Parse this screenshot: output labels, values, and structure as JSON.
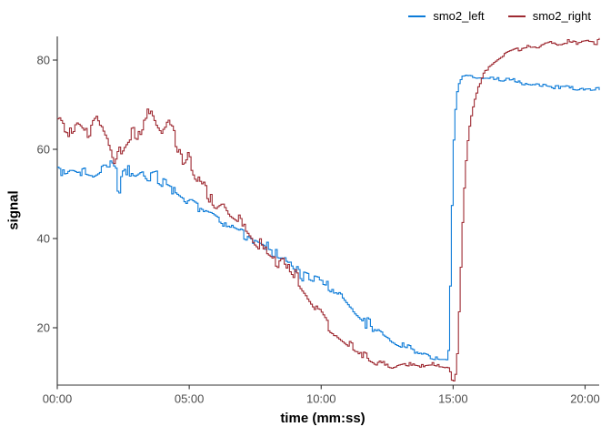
{
  "chart_data": {
    "type": "line",
    "title": "",
    "xlabel": "time (mm:ss)",
    "ylabel": "signal",
    "background_color": "#ffffff",
    "axis_color": "#333333",
    "tick_label_color": "#4d4d4d",
    "axis_title_color": "#000000",
    "grid": "off",
    "legend_position": "top-right",
    "x_axis": {
      "unit": "mm:ss",
      "min_seconds": 0,
      "max_seconds": 1200,
      "data_end_seconds": 1232,
      "ticks_seconds": [
        0,
        300,
        600,
        900,
        1200
      ],
      "tick_labels": [
        "00:00",
        "05:00",
        "10:00",
        "15:00",
        "20:00"
      ]
    },
    "y_axis": {
      "ticks": [
        20,
        40,
        60,
        80
      ],
      "tick_labels": [
        "20",
        "40",
        "60",
        "80"
      ],
      "panel_min": 7.4,
      "panel_max": 85.3
    },
    "series": [
      {
        "name": "smo2_left",
        "color": "#0c7bd8",
        "trend_points": [
          [
            0,
            55.3
          ],
          [
            15,
            54.2
          ],
          [
            30,
            55.0
          ],
          [
            45,
            54.2
          ],
          [
            60,
            54.8
          ],
          [
            75,
            54.3
          ],
          [
            90,
            55.2
          ],
          [
            105,
            56.3
          ],
          [
            118,
            56.9
          ],
          [
            132,
            55.2
          ],
          [
            138,
            48.5
          ],
          [
            144,
            54.0
          ],
          [
            160,
            55.4
          ],
          [
            175,
            54.2
          ],
          [
            190,
            55.2
          ],
          [
            205,
            53.4
          ],
          [
            224,
            54.0
          ],
          [
            240,
            52.2
          ],
          [
            260,
            51.2
          ],
          [
            280,
            49.6
          ],
          [
            300,
            48.4
          ],
          [
            327,
            46.6
          ],
          [
            350,
            45.6
          ],
          [
            370,
            44.2
          ],
          [
            390,
            42.6
          ],
          [
            410,
            41.6
          ],
          [
            430,
            40.6
          ],
          [
            455,
            38.9
          ],
          [
            480,
            37.6
          ],
          [
            505,
            36.9
          ],
          [
            530,
            35.6
          ],
          [
            555,
            31.6
          ],
          [
            585,
            30.4
          ],
          [
            615,
            29.6
          ],
          [
            645,
            27.4
          ],
          [
            675,
            23.6
          ],
          [
            700,
            21.2
          ],
          [
            718,
            19.9
          ],
          [
            740,
            18.4
          ],
          [
            760,
            17.1
          ],
          [
            786,
            15.9
          ],
          [
            810,
            14.9
          ],
          [
            830,
            13.9
          ],
          [
            850,
            13.3
          ],
          [
            870,
            12.9
          ],
          [
            885,
            12.9
          ],
          [
            888,
            15.0
          ],
          [
            891,
            25.0
          ],
          [
            894,
            38.0
          ],
          [
            897,
            52.0
          ],
          [
            900,
            62.0
          ],
          [
            904,
            69.0
          ],
          [
            908,
            73.0
          ],
          [
            913,
            75.2
          ],
          [
            920,
            76.2
          ],
          [
            935,
            76.4
          ],
          [
            955,
            76.0
          ],
          [
            975,
            76.2
          ],
          [
            1000,
            75.8
          ],
          [
            1025,
            75.6
          ],
          [
            1050,
            75.0
          ],
          [
            1075,
            74.6
          ],
          [
            1100,
            74.2
          ],
          [
            1125,
            73.8
          ],
          [
            1150,
            74.0
          ],
          [
            1175,
            73.6
          ],
          [
            1200,
            73.3
          ],
          [
            1232,
            73.6
          ]
        ],
        "noise_amplitude": [
          [
            0,
            1.0
          ],
          [
            130,
            1.3
          ],
          [
            300,
            1.2
          ],
          [
            560,
            1.5
          ],
          [
            700,
            1.4
          ],
          [
            820,
            0.7
          ],
          [
            880,
            0.25
          ],
          [
            890,
            0.05
          ],
          [
            915,
            0.25
          ],
          [
            940,
            0.5
          ],
          [
            1232,
            0.5
          ]
        ]
      },
      {
        "name": "smo2_right",
        "color": "#9e2a32",
        "trend_points": [
          [
            0,
            66.5
          ],
          [
            15,
            64.2
          ],
          [
            30,
            63.6
          ],
          [
            45,
            65.0
          ],
          [
            60,
            63.2
          ],
          [
            75,
            64.6
          ],
          [
            90,
            66.4
          ],
          [
            105,
            62.6
          ],
          [
            118,
            60.0
          ],
          [
            128,
            56.6
          ],
          [
            140,
            59.6
          ],
          [
            155,
            62.0
          ],
          [
            170,
            64.0
          ],
          [
            185,
            63.2
          ],
          [
            200,
            67.0
          ],
          [
            212,
            69.2
          ],
          [
            224,
            66.0
          ],
          [
            240,
            63.6
          ],
          [
            255,
            65.4
          ],
          [
            270,
            61.6
          ],
          [
            285,
            56.2
          ],
          [
            295,
            58.4
          ],
          [
            310,
            54.6
          ],
          [
            327,
            52.6
          ],
          [
            345,
            49.2
          ],
          [
            358,
            47.2
          ],
          [
            375,
            48.4
          ],
          [
            390,
            45.6
          ],
          [
            410,
            44.2
          ],
          [
            430,
            42.4
          ],
          [
            450,
            39.6
          ],
          [
            470,
            37.2
          ],
          [
            482,
            36.3
          ],
          [
            500,
            34.9
          ],
          [
            515,
            35.4
          ],
          [
            530,
            33.6
          ],
          [
            550,
            30.2
          ],
          [
            570,
            27.6
          ],
          [
            590,
            24.6
          ],
          [
            615,
            20.8
          ],
          [
            640,
            18.2
          ],
          [
            665,
            16.2
          ],
          [
            690,
            14.2
          ],
          [
            715,
            12.9
          ],
          [
            740,
            11.9
          ],
          [
            760,
            11.3
          ],
          [
            790,
            12.1
          ],
          [
            820,
            11.6
          ],
          [
            850,
            11.9
          ],
          [
            875,
            11.4
          ],
          [
            890,
            11.1
          ],
          [
            896,
            8.3
          ],
          [
            901,
            8.1
          ],
          [
            906,
            10.5
          ],
          [
            909,
            16.0
          ],
          [
            913,
            26.0
          ],
          [
            917,
            36.0
          ],
          [
            921,
            46.0
          ],
          [
            926,
            55.0
          ],
          [
            931,
            61.0
          ],
          [
            937,
            66.0
          ],
          [
            946,
            70.5
          ],
          [
            956,
            74.0
          ],
          [
            966,
            76.5
          ],
          [
            976,
            78.0
          ],
          [
            991,
            79.5
          ],
          [
            1006,
            80.6
          ],
          [
            1021,
            81.5
          ],
          [
            1041,
            82.3
          ],
          [
            1061,
            82.8
          ],
          [
            1081,
            83.0
          ],
          [
            1101,
            83.3
          ],
          [
            1121,
            84.0
          ],
          [
            1141,
            83.5
          ],
          [
            1161,
            84.3
          ],
          [
            1181,
            83.8
          ],
          [
            1205,
            84.2
          ],
          [
            1225,
            84.0
          ],
          [
            1232,
            84.6
          ]
        ],
        "noise_amplitude": [
          [
            0,
            1.2
          ],
          [
            210,
            1.5
          ],
          [
            420,
            1.7
          ],
          [
            600,
            1.5
          ],
          [
            700,
            1.0
          ],
          [
            760,
            0.7
          ],
          [
            880,
            0.3
          ],
          [
            900,
            0.05
          ],
          [
            945,
            0.15
          ],
          [
            975,
            0.4
          ],
          [
            1232,
            0.55
          ]
        ]
      }
    ]
  }
}
